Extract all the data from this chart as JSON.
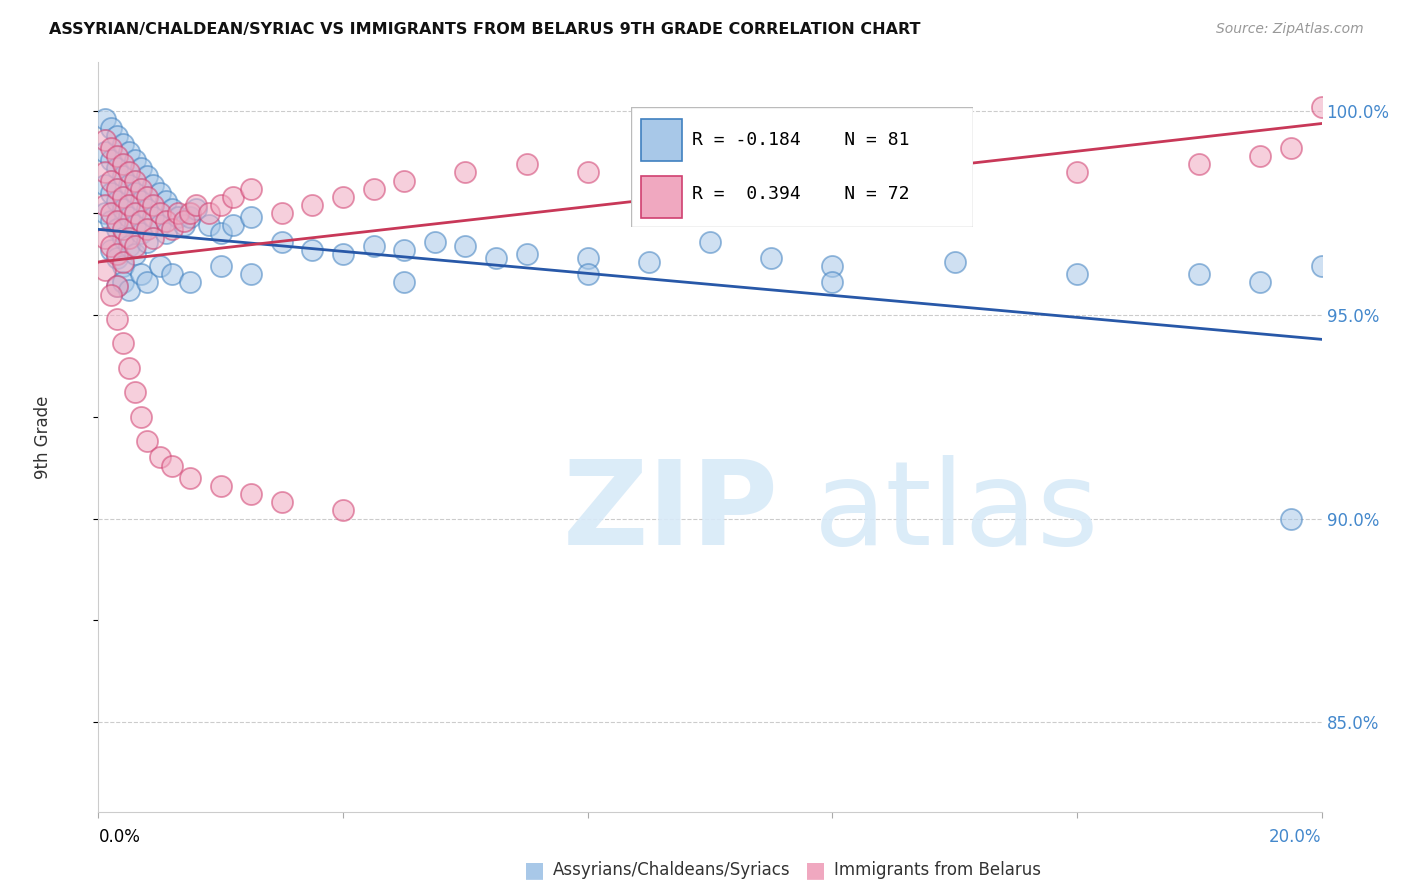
{
  "title": "ASSYRIAN/CHALDEAN/SYRIAC VS IMMIGRANTS FROM BELARUS 9TH GRADE CORRELATION CHART",
  "source": "Source: ZipAtlas.com",
  "ylabel": "9th Grade",
  "r_blue": -0.184,
  "n_blue": 81,
  "r_pink": 0.394,
  "n_pink": 72,
  "legend_blue": "Assyrians/Chaldeans/Syriacs",
  "legend_pink": "Immigrants from Belarus",
  "blue_face": "#a8c8e8",
  "blue_edge": "#4080c0",
  "pink_face": "#f0a8c0",
  "pink_edge": "#d04070",
  "blue_line": "#2858a8",
  "pink_line": "#c83858",
  "xmin": 0.0,
  "xmax": 0.2,
  "ymin": 0.828,
  "ymax": 1.012,
  "yticks": [
    0.85,
    0.9,
    0.95,
    1.0
  ],
  "ytick_labels": [
    "85.0%",
    "90.0%",
    "95.0%",
    "100.0%"
  ],
  "blue_trend_x": [
    0.0,
    0.2
  ],
  "blue_trend_y": [
    0.971,
    0.944
  ],
  "pink_trend_x": [
    0.0,
    0.2
  ],
  "pink_trend_y": [
    0.963,
    0.997
  ],
  "blue_x": [
    0.001,
    0.001,
    0.001,
    0.001,
    0.002,
    0.002,
    0.002,
    0.002,
    0.002,
    0.003,
    0.003,
    0.003,
    0.003,
    0.003,
    0.003,
    0.004,
    0.004,
    0.004,
    0.004,
    0.004,
    0.005,
    0.005,
    0.005,
    0.005,
    0.006,
    0.006,
    0.006,
    0.006,
    0.007,
    0.007,
    0.007,
    0.008,
    0.008,
    0.008,
    0.009,
    0.009,
    0.01,
    0.01,
    0.011,
    0.011,
    0.012,
    0.013,
    0.014,
    0.015,
    0.016,
    0.018,
    0.02,
    0.022,
    0.025,
    0.03,
    0.035,
    0.04,
    0.045,
    0.05,
    0.055,
    0.06,
    0.065,
    0.07,
    0.08,
    0.09,
    0.1,
    0.11,
    0.12,
    0.14,
    0.16,
    0.18,
    0.19,
    0.2,
    0.004,
    0.005,
    0.007,
    0.008,
    0.01,
    0.012,
    0.015,
    0.02,
    0.025,
    0.05,
    0.08,
    0.12,
    0.195
  ],
  "blue_y": [
    0.998,
    0.99,
    0.982,
    0.975,
    0.996,
    0.988,
    0.98,
    0.973,
    0.966,
    0.994,
    0.986,
    0.978,
    0.971,
    0.964,
    0.957,
    0.992,
    0.984,
    0.976,
    0.969,
    0.962,
    0.99,
    0.982,
    0.974,
    0.967,
    0.988,
    0.98,
    0.972,
    0.965,
    0.986,
    0.978,
    0.97,
    0.984,
    0.976,
    0.968,
    0.982,
    0.974,
    0.98,
    0.972,
    0.978,
    0.97,
    0.976,
    0.974,
    0.972,
    0.974,
    0.976,
    0.972,
    0.97,
    0.972,
    0.974,
    0.968,
    0.966,
    0.965,
    0.967,
    0.966,
    0.968,
    0.967,
    0.964,
    0.965,
    0.964,
    0.963,
    0.968,
    0.964,
    0.962,
    0.963,
    0.96,
    0.96,
    0.958,
    0.962,
    0.958,
    0.956,
    0.96,
    0.958,
    0.962,
    0.96,
    0.958,
    0.962,
    0.96,
    0.958,
    0.96,
    0.958,
    0.9
  ],
  "pink_x": [
    0.001,
    0.001,
    0.001,
    0.001,
    0.001,
    0.002,
    0.002,
    0.002,
    0.002,
    0.003,
    0.003,
    0.003,
    0.003,
    0.003,
    0.004,
    0.004,
    0.004,
    0.004,
    0.005,
    0.005,
    0.005,
    0.006,
    0.006,
    0.006,
    0.007,
    0.007,
    0.008,
    0.008,
    0.009,
    0.009,
    0.01,
    0.011,
    0.012,
    0.013,
    0.014,
    0.015,
    0.016,
    0.018,
    0.02,
    0.022,
    0.025,
    0.03,
    0.035,
    0.04,
    0.045,
    0.05,
    0.06,
    0.07,
    0.08,
    0.09,
    0.1,
    0.12,
    0.14,
    0.16,
    0.18,
    0.19,
    0.195,
    0.2,
    0.002,
    0.003,
    0.004,
    0.005,
    0.006,
    0.007,
    0.008,
    0.01,
    0.012,
    0.015,
    0.02,
    0.025,
    0.03,
    0.04
  ],
  "pink_y": [
    0.993,
    0.985,
    0.977,
    0.969,
    0.961,
    0.991,
    0.983,
    0.975,
    0.967,
    0.989,
    0.981,
    0.973,
    0.965,
    0.957,
    0.987,
    0.979,
    0.971,
    0.963,
    0.985,
    0.977,
    0.969,
    0.983,
    0.975,
    0.967,
    0.981,
    0.973,
    0.979,
    0.971,
    0.977,
    0.969,
    0.975,
    0.973,
    0.971,
    0.975,
    0.973,
    0.975,
    0.977,
    0.975,
    0.977,
    0.979,
    0.981,
    0.975,
    0.977,
    0.979,
    0.981,
    0.983,
    0.985,
    0.987,
    0.985,
    0.987,
    0.983,
    0.985,
    0.987,
    0.985,
    0.987,
    0.989,
    0.991,
    1.001,
    0.955,
    0.949,
    0.943,
    0.937,
    0.931,
    0.925,
    0.919,
    0.915,
    0.913,
    0.91,
    0.908,
    0.906,
    0.904,
    0.902
  ]
}
